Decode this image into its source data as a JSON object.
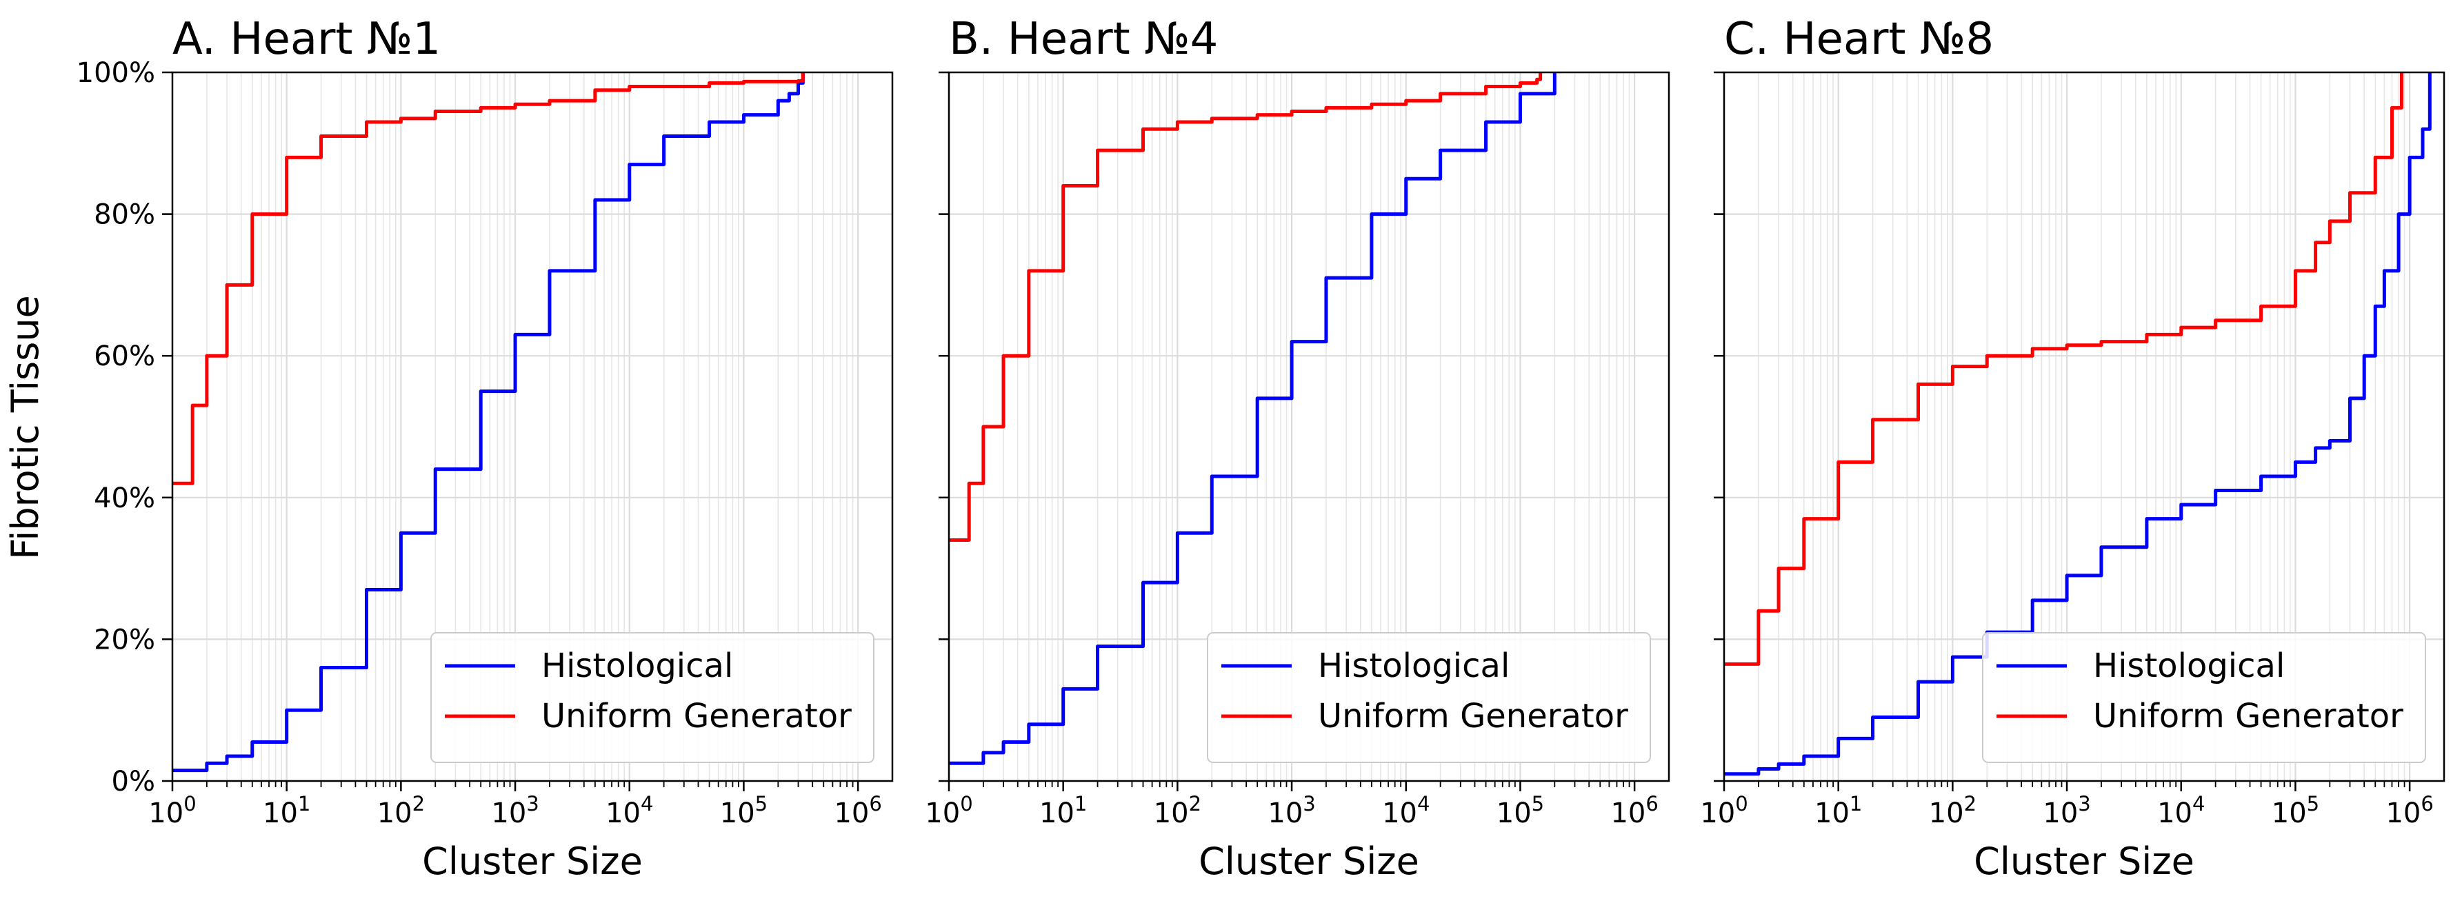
{
  "figure": {
    "ylabel": "Fibrotic Tissue"
  },
  "chart_data": [
    {
      "type": "line",
      "title": "A. Heart №1",
      "xlabel": "Cluster Size",
      "ylabel": "Fibrotic Tissue",
      "xscale": "log",
      "xlim": [
        1,
        2000000
      ],
      "ylim": [
        0,
        100
      ],
      "xticks": [
        {
          "base": "10",
          "exp": "0"
        },
        {
          "base": "10",
          "exp": "1"
        },
        {
          "base": "10",
          "exp": "2"
        },
        {
          "base": "10",
          "exp": "3"
        },
        {
          "base": "10",
          "exp": "4"
        },
        {
          "base": "10",
          "exp": "5"
        },
        {
          "base": "10",
          "exp": "6"
        }
      ],
      "yticks": [
        "0%",
        "20%",
        "40%",
        "60%",
        "80%",
        "100%"
      ],
      "grid": true,
      "legend": "lower right",
      "series": [
        {
          "name": "Histological",
          "color": "#0000ff",
          "step": true,
          "x": [
            1,
            2,
            3,
            5,
            10,
            20,
            50,
            100,
            200,
            500,
            1000,
            2000,
            5000,
            10000,
            20000,
            50000,
            100000,
            200000,
            250000,
            300000,
            330000
          ],
          "y": [
            1.5,
            2.5,
            3.5,
            5.5,
            10,
            16,
            27,
            35,
            44,
            55,
            63,
            72,
            82,
            87,
            91,
            93,
            94,
            96,
            97,
            98.5,
            100
          ]
        },
        {
          "name": "Uniform Generator",
          "color": "#ff0000",
          "step": true,
          "x": [
            1,
            1.5,
            2,
            3,
            5,
            10,
            20,
            50,
            100,
            200,
            500,
            1000,
            2000,
            5000,
            10000,
            50000,
            100000,
            300000,
            330000
          ],
          "y": [
            42,
            53,
            60,
            70,
            80,
            88,
            91,
            93,
            93.5,
            94.5,
            95,
            95.5,
            96,
            97.5,
            98,
            98.5,
            98.7,
            98.8,
            100
          ]
        }
      ]
    },
    {
      "type": "line",
      "title": "B. Heart №4",
      "xlabel": "Cluster Size",
      "ylabel": "",
      "xscale": "log",
      "xlim": [
        1,
        2000000
      ],
      "ylim": [
        0,
        100
      ],
      "xticks": [
        {
          "base": "10",
          "exp": "0"
        },
        {
          "base": "10",
          "exp": "1"
        },
        {
          "base": "10",
          "exp": "2"
        },
        {
          "base": "10",
          "exp": "3"
        },
        {
          "base": "10",
          "exp": "4"
        },
        {
          "base": "10",
          "exp": "5"
        },
        {
          "base": "10",
          "exp": "6"
        }
      ],
      "yticks": [],
      "grid": true,
      "legend": "lower right",
      "series": [
        {
          "name": "Histological",
          "color": "#0000ff",
          "step": true,
          "x": [
            1,
            2,
            3,
            5,
            10,
            20,
            50,
            100,
            200,
            500,
            1000,
            2000,
            5000,
            10000,
            20000,
            50000,
            100000,
            200000
          ],
          "y": [
            2.5,
            4,
            5.5,
            8,
            13,
            19,
            28,
            35,
            43,
            54,
            62,
            71,
            80,
            85,
            89,
            93,
            97,
            100
          ]
        },
        {
          "name": "Uniform Generator",
          "color": "#ff0000",
          "step": true,
          "x": [
            1,
            1.5,
            2,
            3,
            5,
            10,
            20,
            50,
            100,
            200,
            500,
            1000,
            2000,
            5000,
            10000,
            20000,
            50000,
            100000,
            140000,
            150000
          ],
          "y": [
            34,
            42,
            50,
            60,
            72,
            84,
            89,
            92,
            93,
            93.5,
            94,
            94.5,
            95,
            95.5,
            96,
            97,
            98,
            98.5,
            99,
            100
          ]
        }
      ]
    },
    {
      "type": "line",
      "title": "C. Heart №8",
      "xlabel": "Cluster Size",
      "ylabel": "",
      "xscale": "log",
      "xlim": [
        1,
        2000000
      ],
      "ylim": [
        0,
        100
      ],
      "xticks": [
        {
          "base": "10",
          "exp": "0"
        },
        {
          "base": "10",
          "exp": "1"
        },
        {
          "base": "10",
          "exp": "2"
        },
        {
          "base": "10",
          "exp": "3"
        },
        {
          "base": "10",
          "exp": "4"
        },
        {
          "base": "10",
          "exp": "5"
        },
        {
          "base": "10",
          "exp": "6"
        }
      ],
      "yticks": [],
      "grid": true,
      "legend": "lower right",
      "series": [
        {
          "name": "Histological",
          "color": "#0000ff",
          "step": true,
          "x": [
            1,
            2,
            3,
            5,
            10,
            20,
            50,
            100,
            200,
            500,
            1000,
            2000,
            5000,
            10000,
            20000,
            50000,
            100000,
            150000,
            200000,
            300000,
            400000,
            500000,
            600000,
            800000,
            1000000,
            1300000,
            1500000
          ],
          "y": [
            1,
            1.7,
            2.4,
            3.5,
            6,
            9,
            14,
            17.5,
            21,
            25.5,
            29,
            33,
            37,
            39,
            41,
            43,
            45,
            47,
            48,
            54,
            60,
            67,
            72,
            80,
            88,
            92,
            100
          ]
        },
        {
          "name": "Uniform Generator",
          "color": "#ff0000",
          "step": true,
          "x": [
            1,
            2,
            3,
            5,
            10,
            20,
            50,
            100,
            200,
            500,
            1000,
            2000,
            5000,
            10000,
            20000,
            50000,
            100000,
            150000,
            200000,
            300000,
            500000,
            700000,
            850000
          ],
          "y": [
            16.5,
            24,
            30,
            37,
            45,
            51,
            56,
            58.5,
            60,
            61,
            61.5,
            62,
            63,
            64,
            65,
            67,
            72,
            76,
            79,
            83,
            88,
            95,
            100
          ]
        }
      ]
    }
  ]
}
